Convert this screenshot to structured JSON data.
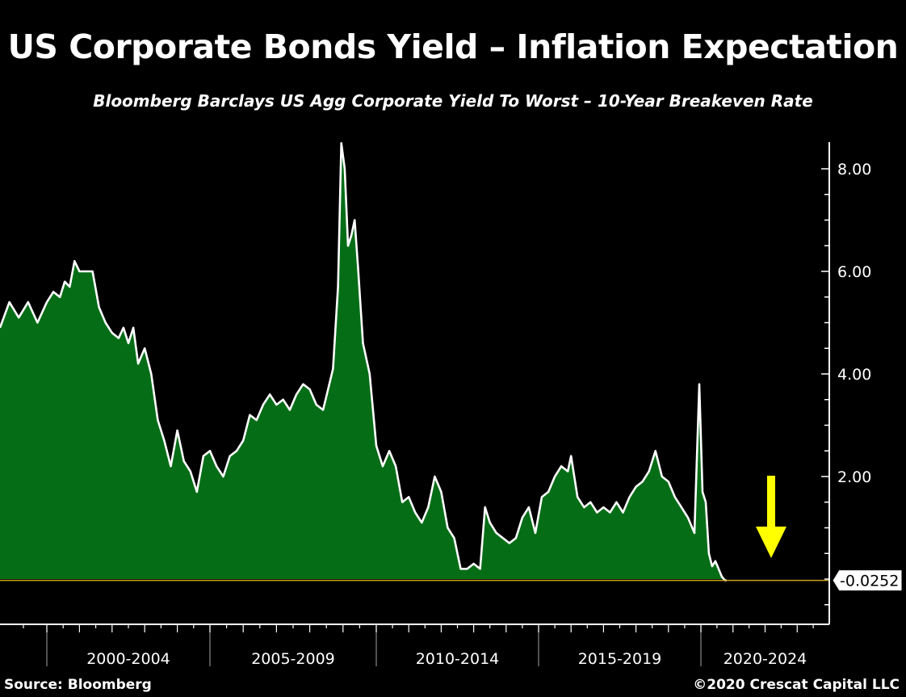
{
  "title": "US Corporate Bonds Yield – Inflation Expectation",
  "subtitle": "Bloomberg Barclays US Agg Corporate Yield To Worst – 10-Year Breakeven Rate",
  "source": "Source: Bloomberg",
  "copyright": "©2020 Crescat Capital LLC",
  "colors": {
    "area": "#066d17",
    "line": "#ffffff",
    "arrow": "#ffff00",
    "baseline": "#c8a21a",
    "background": "#000000"
  },
  "chart_data": {
    "type": "area",
    "title": "US Corporate Bonds Yield – Inflation Expectation",
    "subtitle": "Bloomberg Barclays US Agg Corporate Yield To Worst – 10-Year Breakeven Rate",
    "xlabel": "",
    "ylabel": "",
    "ylim": [
      -0.9,
      8.5
    ],
    "xlim": [
      1999.0,
      2024.0
    ],
    "y_ticks": [
      2.0,
      4.0,
      6.0,
      8.0
    ],
    "y_tick_labels": [
      "2.00",
      "4.00",
      "6.00",
      "8.00"
    ],
    "x_periods": [
      "2000-2004",
      "2005-2009",
      "2010-2014",
      "2015-2019",
      "2020-2024"
    ],
    "x_period_bounds": [
      1999.0,
      2000.0,
      2005.0,
      2010.0,
      2015.0,
      2020.0,
      2024.0
    ],
    "last_value": -0.0252,
    "last_value_label": "-0.0252",
    "grid": false,
    "annotations": [
      "downward arrow"
    ],
    "series": [
      {
        "x": [
          1999.0,
          1999.2,
          1999.4,
          1999.6,
          1999.8,
          2000.0,
          2000.2,
          2000.4,
          2000.55,
          2000.7,
          2000.85,
          2001.0,
          2001.2,
          2001.4,
          2001.6,
          2001.8,
          2002.0,
          2002.2,
          2002.35,
          2002.5,
          2002.65,
          2002.8,
          2003.0,
          2003.2,
          2003.4,
          2003.6,
          2003.8,
          2004.0,
          2004.2,
          2004.4,
          2004.6,
          2004.8,
          2005.0,
          2005.2,
          2005.4,
          2005.6,
          2005.8,
          2006.0,
          2006.2,
          2006.4,
          2006.6,
          2006.8,
          2007.0,
          2007.2,
          2007.4,
          2007.6,
          2007.8,
          2008.0,
          2008.2,
          2008.4,
          2008.55,
          2008.7,
          2008.85,
          2008.95,
          2009.05,
          2009.15,
          2009.25,
          2009.35,
          2009.45,
          2009.6,
          2009.8,
          2010.0,
          2010.2,
          2010.4,
          2010.6,
          2010.8,
          2011.0,
          2011.2,
          2011.4,
          2011.6,
          2011.8,
          2012.0,
          2012.2,
          2012.4,
          2012.6,
          2012.8,
          2013.0,
          2013.2,
          2013.35,
          2013.5,
          2013.7,
          2013.9,
          2014.1,
          2014.3,
          2014.5,
          2014.7,
          2014.9,
          2015.1,
          2015.3,
          2015.5,
          2015.7,
          2015.9,
          2016.0,
          2016.2,
          2016.4,
          2016.6,
          2016.8,
          2017.0,
          2017.2,
          2017.4,
          2017.6,
          2017.8,
          2018.0,
          2018.2,
          2018.4,
          2018.6,
          2018.8,
          2019.0,
          2019.2,
          2019.4,
          2019.6,
          2019.8,
          2019.95,
          2020.05,
          2020.15,
          2020.25,
          2020.35,
          2020.45,
          2020.55,
          2020.65,
          2020.75,
          2020.8
        ],
        "values": [
          4.9,
          5.4,
          5.1,
          5.4,
          5.0,
          5.4,
          5.6,
          5.5,
          5.8,
          5.7,
          6.2,
          6.0,
          6.0,
          6.0,
          5.3,
          5.0,
          4.8,
          4.7,
          4.9,
          4.6,
          4.9,
          4.2,
          4.5,
          4.0,
          3.1,
          2.7,
          2.2,
          2.9,
          2.3,
          2.1,
          1.7,
          2.4,
          2.5,
          2.2,
          2.0,
          2.4,
          2.5,
          2.7,
          3.2,
          3.1,
          3.4,
          3.6,
          3.4,
          3.5,
          3.3,
          3.6,
          3.8,
          3.7,
          3.4,
          3.3,
          3.7,
          4.1,
          5.7,
          8.5,
          8.0,
          6.5,
          6.7,
          7.0,
          6.1,
          4.6,
          4.0,
          2.6,
          2.2,
          2.5,
          2.2,
          1.5,
          1.6,
          1.3,
          1.1,
          1.4,
          2.0,
          1.7,
          1.0,
          0.8,
          0.2,
          0.2,
          0.3,
          0.2,
          1.4,
          1.1,
          0.9,
          0.8,
          0.7,
          0.8,
          1.2,
          1.4,
          0.9,
          1.6,
          1.7,
          2.0,
          2.2,
          2.1,
          2.4,
          1.6,
          1.4,
          1.5,
          1.3,
          1.4,
          1.3,
          1.5,
          1.3,
          1.6,
          1.8,
          1.9,
          2.1,
          2.5,
          2.0,
          1.9,
          1.6,
          1.4,
          1.2,
          0.9,
          3.8,
          1.7,
          1.5,
          0.5,
          0.25,
          0.35,
          0.2,
          0.05,
          -0.0252,
          -0.0252
        ]
      }
    ]
  }
}
